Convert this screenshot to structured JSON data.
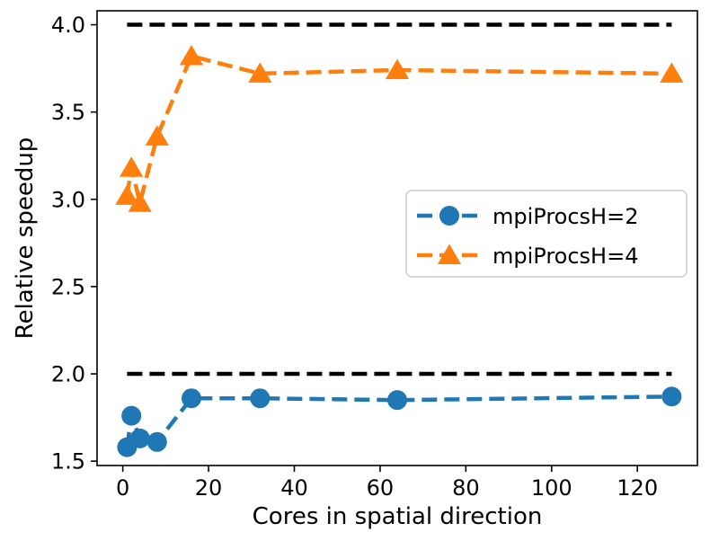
{
  "chart_data": {
    "type": "line",
    "title": "",
    "xlabel": "Cores in spatial direction",
    "ylabel": "Relative speedup",
    "xlim": [
      -6,
      134
    ],
    "ylim": [
      1.475,
      4.08
    ],
    "x_ticks": [
      0,
      20,
      40,
      60,
      80,
      100,
      120
    ],
    "x_tick_labels": [
      "0",
      "20",
      "40",
      "60",
      "80",
      "100",
      "120"
    ],
    "y_ticks": [
      1.5,
      2.0,
      2.5,
      3.0,
      3.5,
      4.0
    ],
    "y_tick_labels": [
      "1.5",
      "2.0",
      "2.5",
      "3.0",
      "3.5",
      "4.0"
    ],
    "grid": false,
    "legend_position": "center-right",
    "series": [
      {
        "name": "mpiProcsH=2",
        "color": "#1f77b4",
        "marker": "circle",
        "linestyle": "dashed",
        "x": [
          1,
          2,
          4,
          8,
          16,
          32,
          64,
          128
        ],
        "y": [
          1.58,
          1.76,
          1.63,
          1.61,
          1.86,
          1.86,
          1.85,
          1.87
        ]
      },
      {
        "name": "mpiProcsH=4",
        "color": "#ff7f0e",
        "marker": "triangle",
        "linestyle": "dashed",
        "x": [
          1,
          2,
          4,
          8,
          16,
          32,
          64,
          128
        ],
        "y": [
          3.02,
          3.18,
          2.98,
          3.36,
          3.82,
          3.72,
          3.74,
          3.72
        ]
      }
    ],
    "reference_lines": [
      {
        "name": "ideal-speedup-2",
        "y": 2.0,
        "x_range": [
          1,
          128
        ],
        "color": "#000000",
        "linestyle": "dashed"
      },
      {
        "name": "ideal-speedup-4",
        "y": 4.0,
        "x_range": [
          1,
          128
        ],
        "color": "#000000",
        "linestyle": "dashed"
      }
    ]
  }
}
